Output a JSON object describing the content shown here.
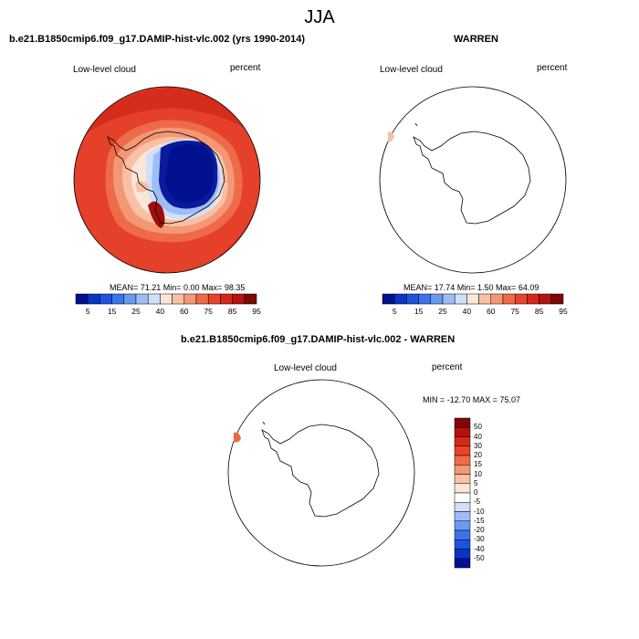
{
  "page": {
    "season": "JJA",
    "variable": "Low-level cloud",
    "units": "percent"
  },
  "panel_model": {
    "title": "b.e21.B1850cmip6.f09_g17.DAMIP-hist-vlc.002 (yrs 1990-2014)",
    "label_left": "Low-level cloud",
    "label_right": "percent",
    "stats_text": "MEAN=  71.21  Min=   0.00  Max=  98.35"
  },
  "panel_obs": {
    "title": "WARREN",
    "label_left": "Low-level cloud",
    "label_right": "percent",
    "stats_text": "MEAN=  17.74  Min=   1.50  Max=  64.09"
  },
  "panel_diff": {
    "title": "b.e21.B1850cmip6.f09_g17.DAMIP-hist-vlc.002 - WARREN",
    "label_left": "Low-level cloud",
    "label_right": "percent",
    "stats_text": "MIN = -12.70 MAX =  75.07"
  },
  "colorbar_abs": {
    "tick_labels": [
      "5",
      "15",
      "25",
      "40",
      "60",
      "75",
      "85",
      "95"
    ],
    "colors": [
      "#00108f",
      "#0a35c4",
      "#1c54e0",
      "#3a74ea",
      "#6a99f0",
      "#9ebdf5",
      "#cfe0f8",
      "#fbe6d8",
      "#f8c0a5",
      "#f39775",
      "#ee6a48",
      "#e8432a",
      "#d8271a",
      "#b5120f",
      "#7d0806"
    ]
  },
  "colorbar_diff": {
    "tick_labels": [
      "50",
      "40",
      "30",
      "20",
      "15",
      "10",
      "5",
      "0",
      "-5",
      "-10",
      "-15",
      "-20",
      "-30",
      "-40",
      "-50"
    ],
    "colors": [
      "#7d0806",
      "#b5120f",
      "#d8271a",
      "#e8432a",
      "#ee6a48",
      "#f39775",
      "#f8c0a5",
      "#fbe6d8",
      "#ffffff",
      "#cfe0f8",
      "#9ebdf5",
      "#6a99f0",
      "#3a74ea",
      "#1c54e0",
      "#0a35c4",
      "#00108f"
    ]
  }
}
